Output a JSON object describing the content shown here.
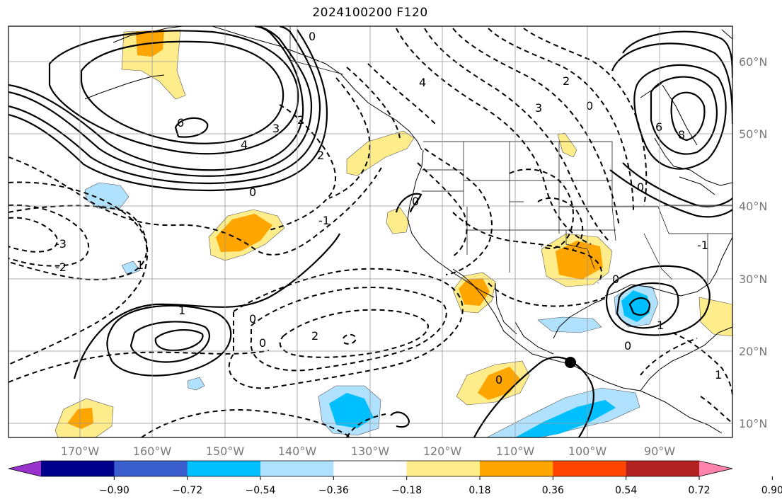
{
  "title": "2024100200 F120",
  "map": {
    "type": "forecast-map",
    "projection": "plate carree",
    "extent": {
      "lon": [
        -180,
        -80
      ],
      "lat": [
        8,
        66
      ]
    },
    "grid": true,
    "lon_ticks": [
      "170°W",
      "160°W",
      "150°W",
      "140°W",
      "130°W",
      "120°W",
      "110°W",
      "100°W",
      "90°W"
    ],
    "lat_ticks": [
      "60°N",
      "50°N",
      "40°N",
      "30°N",
      "20°N",
      "10°N"
    ],
    "contour_labels": [
      "6",
      "4",
      "3",
      "2",
      "2",
      "0",
      "0",
      "-1",
      "-2",
      "-3",
      "1",
      "0",
      "0",
      "2",
      "0",
      "1",
      "4",
      "3",
      "0",
      "2",
      "8",
      "6",
      "0",
      "0",
      "1",
      "-1",
      "0",
      "0",
      "1"
    ],
    "marker": {
      "lon": -101.7,
      "lat": 17.6,
      "color": "#000000"
    }
  },
  "colorbar": {
    "colors": [
      "#9932cc",
      "#00008b",
      "#3a5fcd",
      "#00bfff",
      "#b0e2ff",
      "#ffffff",
      "#ffec8b",
      "#ffa500",
      "#ff4500",
      "#b22222",
      "#ff83ab"
    ],
    "ticks": [
      "−0.90",
      "−0.72",
      "−0.54",
      "−0.36",
      "−0.18",
      "0.18",
      "0.36",
      "0.54",
      "0.72",
      "0.90"
    ]
  }
}
